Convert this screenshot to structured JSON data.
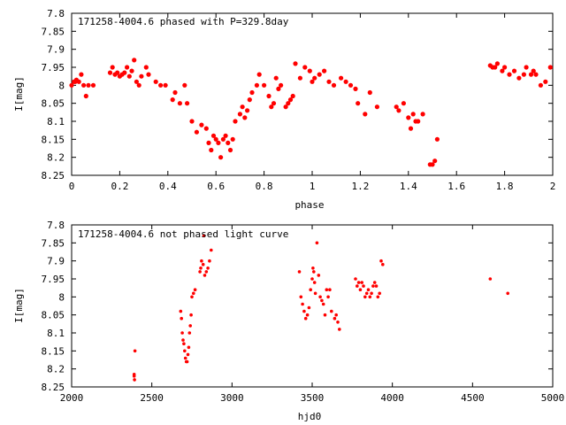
{
  "chart_data": [
    {
      "type": "scatter",
      "title": "171258-4004.6 phased with P=329.8day",
      "xlabel": "phase",
      "ylabel": "I[mag]",
      "xlim": [
        0,
        2
      ],
      "ylim": [
        7.8,
        8.25
      ],
      "y_inverted": true,
      "xticks": [
        0,
        0.2,
        0.4,
        0.6,
        0.8,
        1,
        1.2,
        1.4,
        1.6,
        1.8,
        2
      ],
      "xtick_labels": [
        "0",
        "0.2",
        "0.4",
        "0.6",
        "0.8",
        "1",
        "1.2",
        "1.4",
        "1.6",
        "1.8",
        "2"
      ],
      "yticks": [
        7.8,
        7.85,
        7.9,
        7.95,
        8,
        8.05,
        8.1,
        8.15,
        8.2,
        8.25
      ],
      "ytick_labels": [
        "7.8",
        "7.85",
        "7.9",
        "7.95",
        "8",
        "8.05",
        "8.1",
        "8.15",
        "8.2",
        "8.25"
      ],
      "grid": false,
      "marker_color": "#ff0000",
      "series": [
        {
          "points": [
            [
              0.0,
              8.0
            ],
            [
              0.01,
              7.99
            ],
            [
              0.015,
              7.99
            ],
            [
              0.02,
              7.985
            ],
            [
              0.03,
              7.99
            ],
            [
              0.04,
              7.97
            ],
            [
              0.05,
              8.0
            ],
            [
              0.06,
              8.03
            ],
            [
              0.07,
              8.0
            ],
            [
              0.09,
              8.0
            ],
            [
              0.16,
              7.965
            ],
            [
              0.17,
              7.95
            ],
            [
              0.18,
              7.97
            ],
            [
              0.19,
              7.965
            ],
            [
              0.2,
              7.975
            ],
            [
              0.21,
              7.97
            ],
            [
              0.22,
              7.965
            ],
            [
              0.23,
              7.95
            ],
            [
              0.24,
              7.975
            ],
            [
              0.25,
              7.96
            ],
            [
              0.26,
              7.93
            ],
            [
              0.27,
              7.99
            ],
            [
              0.28,
              8.0
            ],
            [
              0.29,
              7.975
            ],
            [
              0.31,
              7.95
            ],
            [
              0.32,
              7.97
            ],
            [
              0.35,
              7.99
            ],
            [
              0.37,
              8.0
            ],
            [
              0.39,
              8.0
            ],
            [
              0.42,
              8.04
            ],
            [
              0.43,
              8.02
            ],
            [
              0.45,
              8.05
            ],
            [
              0.47,
              8.0
            ],
            [
              0.48,
              8.05
            ],
            [
              0.5,
              8.1
            ],
            [
              0.52,
              8.13
            ],
            [
              0.54,
              8.11
            ],
            [
              0.56,
              8.12
            ],
            [
              0.57,
              8.16
            ],
            [
              0.58,
              8.18
            ],
            [
              0.59,
              8.14
            ],
            [
              0.6,
              8.15
            ],
            [
              0.61,
              8.16
            ],
            [
              0.62,
              8.2
            ],
            [
              0.63,
              8.15
            ],
            [
              0.64,
              8.14
            ],
            [
              0.65,
              8.16
            ],
            [
              0.66,
              8.18
            ],
            [
              0.67,
              8.15
            ],
            [
              0.68,
              8.1
            ],
            [
              0.7,
              8.08
            ],
            [
              0.71,
              8.06
            ],
            [
              0.72,
              8.09
            ],
            [
              0.73,
              8.07
            ],
            [
              0.74,
              8.04
            ],
            [
              0.75,
              8.02
            ],
            [
              0.77,
              8.0
            ],
            [
              0.78,
              7.97
            ],
            [
              0.8,
              8.0
            ],
            [
              0.82,
              8.03
            ],
            [
              0.83,
              8.06
            ],
            [
              0.84,
              8.05
            ],
            [
              0.85,
              7.98
            ],
            [
              0.86,
              8.01
            ],
            [
              0.87,
              8.0
            ],
            [
              0.89,
              8.06
            ],
            [
              0.9,
              8.05
            ],
            [
              0.91,
              8.04
            ],
            [
              0.92,
              8.03
            ],
            [
              0.93,
              7.94
            ],
            [
              0.95,
              7.98
            ],
            [
              0.97,
              7.95
            ],
            [
              0.99,
              7.96
            ],
            [
              1.0,
              7.99
            ],
            [
              1.01,
              7.98
            ],
            [
              1.03,
              7.97
            ],
            [
              1.05,
              7.96
            ],
            [
              1.07,
              7.99
            ],
            [
              1.09,
              8.0
            ],
            [
              1.12,
              7.98
            ],
            [
              1.14,
              7.99
            ],
            [
              1.16,
              8.0
            ],
            [
              1.18,
              8.01
            ],
            [
              1.19,
              8.05
            ],
            [
              1.22,
              8.08
            ],
            [
              1.24,
              8.02
            ],
            [
              1.27,
              8.06
            ],
            [
              1.35,
              8.06
            ],
            [
              1.36,
              8.07
            ],
            [
              1.38,
              8.05
            ],
            [
              1.4,
              8.09
            ],
            [
              1.41,
              8.12
            ],
            [
              1.42,
              8.08
            ],
            [
              1.43,
              8.1
            ],
            [
              1.44,
              8.1
            ],
            [
              1.46,
              8.08
            ],
            [
              1.49,
              8.22
            ],
            [
              1.5,
              8.22
            ],
            [
              1.51,
              8.21
            ],
            [
              1.52,
              8.15
            ],
            [
              1.74,
              7.945
            ],
            [
              1.75,
              7.95
            ],
            [
              1.76,
              7.95
            ],
            [
              1.77,
              7.94
            ],
            [
              1.79,
              7.96
            ],
            [
              1.8,
              7.95
            ],
            [
              1.82,
              7.97
            ],
            [
              1.84,
              7.96
            ],
            [
              1.86,
              7.98
            ],
            [
              1.88,
              7.97
            ],
            [
              1.89,
              7.95
            ],
            [
              1.91,
              7.97
            ],
            [
              1.92,
              7.96
            ],
            [
              1.93,
              7.97
            ],
            [
              1.95,
              8.0
            ],
            [
              1.97,
              7.99
            ],
            [
              1.99,
              7.95
            ]
          ]
        }
      ]
    },
    {
      "type": "scatter",
      "title": "171258-4004.6 not phased light curve",
      "xlabel": "hjd0",
      "ylabel": "I[mag]",
      "xlim": [
        2000,
        5000
      ],
      "ylim": [
        7.8,
        8.25
      ],
      "y_inverted": true,
      "xticks": [
        2000,
        2500,
        3000,
        3500,
        4000,
        4500,
        5000
      ],
      "xtick_labels": [
        "2000",
        "2500",
        "3000",
        "3500",
        "4000",
        "4500",
        "5000"
      ],
      "yticks": [
        7.8,
        7.85,
        7.9,
        7.95,
        8,
        8.05,
        8.1,
        8.15,
        8.2,
        8.25
      ],
      "ytick_labels": [
        "7.8",
        "7.85",
        "7.9",
        "7.95",
        "8",
        "8.05",
        "8.1",
        "8.15",
        "8.2",
        "8.25"
      ],
      "grid": false,
      "marker_color": "#ff0000",
      "series": [
        {
          "points": [
            [
              2390,
              8.22
            ],
            [
              2390,
              8.215
            ],
            [
              2392,
              8.23
            ],
            [
              2395,
              8.15
            ],
            [
              2680,
              8.04
            ],
            [
              2685,
              8.06
            ],
            [
              2690,
              8.1
            ],
            [
              2695,
              8.12
            ],
            [
              2700,
              8.13
            ],
            [
              2705,
              8.15
            ],
            [
              2710,
              8.17
            ],
            [
              2715,
              8.18
            ],
            [
              2720,
              8.18
            ],
            [
              2725,
              8.16
            ],
            [
              2730,
              8.14
            ],
            [
              2735,
              8.1
            ],
            [
              2740,
              8.08
            ],
            [
              2745,
              8.05
            ],
            [
              2750,
              8.0
            ],
            [
              2760,
              7.99
            ],
            [
              2770,
              7.98
            ],
            [
              2800,
              7.93
            ],
            [
              2805,
              7.92
            ],
            [
              2810,
              7.9
            ],
            [
              2820,
              7.91
            ],
            [
              2825,
              7.83
            ],
            [
              2830,
              7.94
            ],
            [
              2840,
              7.93
            ],
            [
              2850,
              7.92
            ],
            [
              2860,
              7.9
            ],
            [
              2870,
              7.87
            ],
            [
              3420,
              7.93
            ],
            [
              3430,
              8.0
            ],
            [
              3440,
              8.02
            ],
            [
              3450,
              8.04
            ],
            [
              3460,
              8.06
            ],
            [
              3470,
              8.05
            ],
            [
              3480,
              8.03
            ],
            [
              3490,
              7.98
            ],
            [
              3500,
              7.95
            ],
            [
              3505,
              7.92
            ],
            [
              3510,
              7.93
            ],
            [
              3515,
              7.96
            ],
            [
              3520,
              7.99
            ],
            [
              3530,
              7.85
            ],
            [
              3540,
              7.94
            ],
            [
              3550,
              8.0
            ],
            [
              3560,
              8.01
            ],
            [
              3570,
              8.02
            ],
            [
              3580,
              8.05
            ],
            [
              3590,
              7.98
            ],
            [
              3600,
              8.0
            ],
            [
              3610,
              7.98
            ],
            [
              3620,
              8.04
            ],
            [
              3640,
              8.06
            ],
            [
              3650,
              8.05
            ],
            [
              3660,
              8.07
            ],
            [
              3670,
              8.09
            ],
            [
              3770,
              7.95
            ],
            [
              3780,
              7.97
            ],
            [
              3790,
              7.96
            ],
            [
              3800,
              7.98
            ],
            [
              3810,
              7.96
            ],
            [
              3820,
              7.97
            ],
            [
              3830,
              8.0
            ],
            [
              3840,
              7.99
            ],
            [
              3850,
              7.98
            ],
            [
              3860,
              8.0
            ],
            [
              3870,
              7.99
            ],
            [
              3880,
              7.97
            ],
            [
              3890,
              7.96
            ],
            [
              3900,
              7.97
            ],
            [
              3910,
              8.0
            ],
            [
              3920,
              7.99
            ],
            [
              3930,
              7.9
            ],
            [
              3940,
              7.91
            ],
            [
              4610,
              7.95
            ],
            [
              4720,
              7.99
            ]
          ]
        }
      ]
    }
  ]
}
